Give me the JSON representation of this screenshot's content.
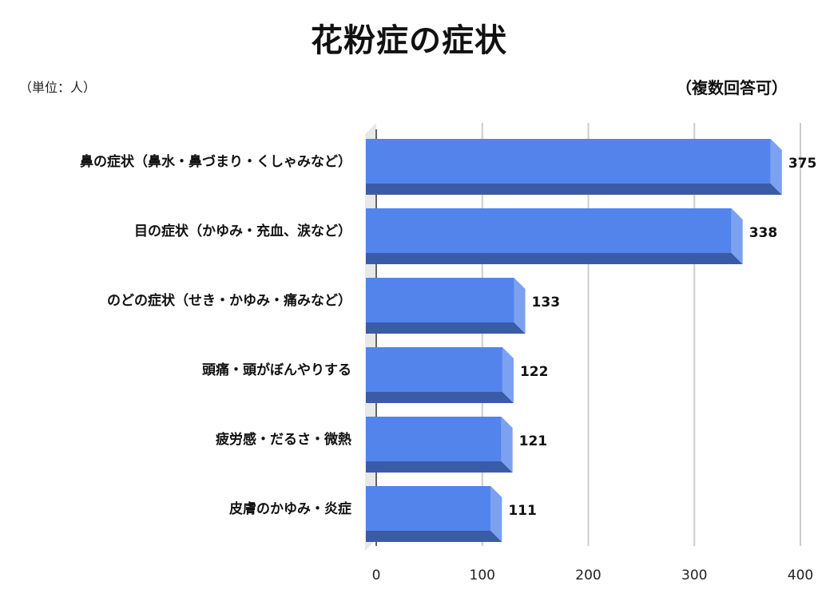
{
  "chart_data": {
    "type": "bar",
    "orientation": "horizontal",
    "title": "花粉症の症状",
    "unit_note": "（単位：人）",
    "side_note": "（複数回答可）",
    "categories": [
      "鼻の症状（鼻水・鼻づまり・くしゃみなど）",
      "目の症状（かゆみ・充血、涙など）",
      "のどの症状（せき・かゆみ・痛みなど）",
      "頭痛・頭がぼんやりする",
      "疲労感・だるさ・微熱",
      "皮膚のかゆみ・炎症"
    ],
    "values": [
      375,
      338,
      133,
      122,
      121,
      111
    ],
    "xlim": [
      0,
      400
    ],
    "xticks": [
      0,
      100,
      200,
      300,
      400
    ],
    "grid": true,
    "colors": {
      "bar_front": "#5284EC",
      "bar_bottom": "#3A5BA6",
      "bar_side": "#7BA1F0",
      "wall": "#E8E8E8",
      "grid": "#CCCCCC"
    }
  }
}
